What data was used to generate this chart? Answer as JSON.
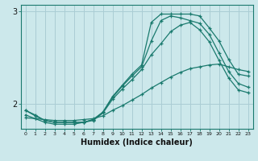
{
  "xlabel": "Humidex (Indice chaleur)",
  "bg_color": "#cce8eb",
  "line_color": "#1a7a6e",
  "grid_color": "#aacdd4",
  "spine_color": "#1a7a6e",
  "xlim": [
    -0.5,
    23.5
  ],
  "ylim": [
    1.73,
    3.07
  ],
  "yticks": [
    2,
    3
  ],
  "xticks": [
    0,
    1,
    2,
    3,
    4,
    5,
    6,
    7,
    8,
    9,
    10,
    11,
    12,
    13,
    14,
    15,
    16,
    17,
    18,
    19,
    20,
    21,
    22,
    23
  ],
  "series": [
    {
      "x": [
        0,
        1,
        2,
        3,
        4,
        5,
        6,
        7,
        8,
        9,
        10,
        11,
        12,
        13,
        14,
        15,
        16,
        17,
        18,
        19,
        20,
        21,
        22,
        23
      ],
      "y": [
        1.93,
        1.88,
        1.82,
        1.8,
        1.8,
        1.8,
        1.8,
        1.83,
        1.91,
        2.08,
        2.2,
        2.32,
        2.42,
        2.88,
        2.97,
        2.97,
        2.97,
        2.97,
        2.95,
        2.82,
        2.68,
        2.48,
        2.32,
        2.3
      ]
    },
    {
      "x": [
        0,
        1,
        2,
        3,
        4,
        5,
        6,
        7,
        8,
        9,
        10,
        11,
        12,
        13,
        14,
        15,
        16,
        17,
        18,
        19,
        20,
        21,
        22,
        23
      ],
      "y": [
        1.93,
        1.87,
        1.82,
        1.8,
        1.8,
        1.8,
        1.8,
        1.83,
        1.91,
        2.07,
        2.19,
        2.3,
        2.4,
        2.68,
        2.9,
        2.95,
        2.93,
        2.9,
        2.87,
        2.75,
        2.55,
        2.35,
        2.22,
        2.18
      ]
    },
    {
      "x": [
        0,
        1,
        2,
        3,
        4,
        5,
        6,
        7,
        8,
        9,
        10,
        11,
        12,
        13,
        14,
        15,
        16,
        17,
        18,
        19,
        20,
        21,
        22,
        23
      ],
      "y": [
        1.88,
        1.84,
        1.8,
        1.78,
        1.78,
        1.78,
        1.8,
        1.82,
        1.9,
        2.05,
        2.16,
        2.26,
        2.37,
        2.53,
        2.65,
        2.78,
        2.85,
        2.88,
        2.8,
        2.67,
        2.47,
        2.28,
        2.15,
        2.12
      ]
    },
    {
      "x": [
        0,
        1,
        2,
        3,
        4,
        5,
        6,
        7,
        8,
        9,
        10,
        11,
        12,
        13,
        14,
        15,
        16,
        17,
        18,
        19,
        20,
        21,
        22,
        23
      ],
      "y": [
        1.85,
        1.84,
        1.83,
        1.82,
        1.82,
        1.82,
        1.83,
        1.84,
        1.87,
        1.93,
        1.98,
        2.04,
        2.1,
        2.17,
        2.23,
        2.29,
        2.34,
        2.38,
        2.4,
        2.42,
        2.43,
        2.4,
        2.37,
        2.35
      ]
    }
  ]
}
